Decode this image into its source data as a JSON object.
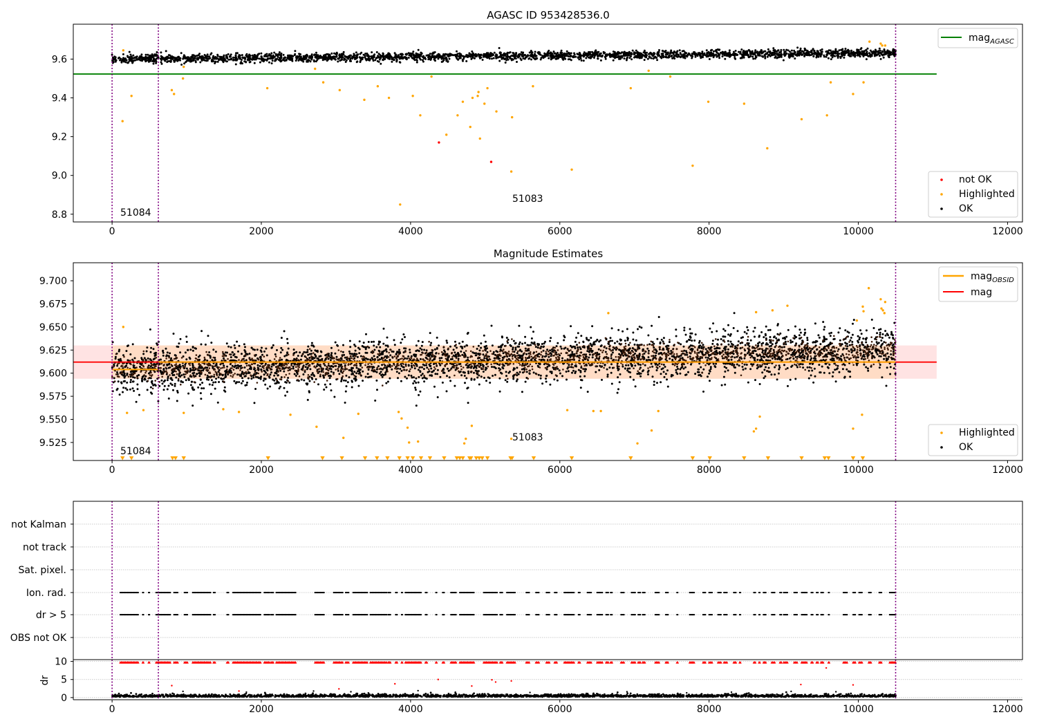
{
  "chart_data": [
    {
      "id": "top",
      "type": "scatter",
      "title": "AGASC ID 953428536.0",
      "xlim": [
        -520,
        12200
      ],
      "ylim": [
        8.76,
        9.78
      ],
      "xticks": [
        0,
        2000,
        4000,
        6000,
        8000,
        10000,
        12000
      ],
      "yticks": [
        8.8,
        9.0,
        9.2,
        9.4,
        9.6
      ],
      "vlines": [
        0,
        620,
        10500
      ],
      "hline": {
        "name": "mag",
        "subscript": "AGASC",
        "y": 9.523,
        "x_from": -520,
        "x_to": 11050,
        "color": "#008000"
      },
      "series": [
        {
          "name": "not OK",
          "color": "#ff0000"
        },
        {
          "name": "Highlighted",
          "color": "#ffa500"
        },
        {
          "name": "OK",
          "color": "#000000"
        }
      ],
      "band": {
        "x_from": 0,
        "x_to": 10500,
        "center_start": 9.6,
        "center_end": 9.632,
        "half_width": 0.022,
        "count": 2600
      },
      "highlighted_points": [
        [
          140,
          9.28
        ],
        [
          260,
          9.41
        ],
        [
          150,
          9.645
        ],
        [
          830,
          9.42
        ],
        [
          800,
          9.44
        ],
        [
          950,
          9.5
        ],
        [
          960,
          9.56
        ],
        [
          2080,
          9.45
        ],
        [
          2720,
          9.55
        ],
        [
          2830,
          9.48
        ],
        [
          3050,
          9.44
        ],
        [
          3380,
          9.39
        ],
        [
          3560,
          9.46
        ],
        [
          3710,
          9.4
        ],
        [
          3860,
          8.85
        ],
        [
          4030,
          9.41
        ],
        [
          4130,
          9.31
        ],
        [
          4280,
          9.51
        ],
        [
          4480,
          9.21
        ],
        [
          4630,
          9.31
        ],
        [
          4700,
          9.38
        ],
        [
          4800,
          9.25
        ],
        [
          4830,
          9.4
        ],
        [
          4900,
          9.41
        ],
        [
          4910,
          9.43
        ],
        [
          4930,
          9.19
        ],
        [
          4990,
          9.37
        ],
        [
          5030,
          9.45
        ],
        [
          5150,
          9.33
        ],
        [
          5350,
          9.02
        ],
        [
          5360,
          9.3
        ],
        [
          5640,
          9.46
        ],
        [
          6160,
          9.03
        ],
        [
          6950,
          9.45
        ],
        [
          7190,
          9.54
        ],
        [
          7480,
          9.51
        ],
        [
          7780,
          9.05
        ],
        [
          7990,
          9.38
        ],
        [
          8470,
          9.37
        ],
        [
          8780,
          9.14
        ],
        [
          9240,
          9.29
        ],
        [
          9580,
          9.31
        ],
        [
          9630,
          9.48
        ],
        [
          9930,
          9.42
        ],
        [
          10070,
          9.48
        ],
        [
          10150,
          9.69
        ],
        [
          10300,
          9.68
        ],
        [
          10320,
          9.67
        ],
        [
          10360,
          9.67
        ]
      ],
      "notok_points": [
        [
          4380,
          9.17
        ],
        [
          5080,
          9.07
        ]
      ],
      "annotations": [
        {
          "text": "51084",
          "x": 110,
          "y": 8.81
        },
        {
          "text": "51083",
          "x": 5350,
          "y": 8.87
        }
      ]
    },
    {
      "id": "mid",
      "type": "scatter",
      "title": "Magnitude Estimates",
      "xlim": [
        -520,
        12200
      ],
      "ylim": [
        9.5055,
        9.7195
      ],
      "xticks": [
        0,
        2000,
        4000,
        6000,
        8000,
        10000,
        12000
      ],
      "yticks": [
        9.525,
        9.55,
        9.575,
        9.6,
        9.625,
        9.65,
        9.675,
        9.7
      ],
      "vlines": [
        0,
        620,
        10500
      ],
      "mag_line": {
        "name": "mag",
        "y": 9.612,
        "x_from": -520,
        "x_to": 11050,
        "color": "#ff0000"
      },
      "mag_obsid": {
        "name": "mag",
        "subscript": "OBSID",
        "segments": [
          [
            0,
            620,
            9.604
          ],
          [
            620,
            10500,
            9.612
          ]
        ],
        "color": "#ffa500"
      },
      "shaded_band": {
        "from": 9.594,
        "to": 9.63,
        "x_from": -520,
        "x_to": 11050
      },
      "series": [
        {
          "name": "Highlighted",
          "color": "#ffa500"
        },
        {
          "name": "OK",
          "color": "#000000"
        }
      ],
      "band": {
        "x_from": 0,
        "x_to": 10500,
        "center_start": 9.604,
        "center_end": 9.625,
        "half_width": 0.026,
        "count": 3200
      },
      "highlighted_points": [
        [
          150,
          9.65
        ],
        [
          200,
          9.557
        ],
        [
          420,
          9.56
        ],
        [
          960,
          9.557
        ],
        [
          1490,
          9.561
        ],
        [
          1700,
          9.558
        ],
        [
          2390,
          9.555
        ],
        [
          2740,
          9.542
        ],
        [
          3100,
          9.53
        ],
        [
          3300,
          9.556
        ],
        [
          3840,
          9.558
        ],
        [
          3880,
          9.551
        ],
        [
          3960,
          9.541
        ],
        [
          3980,
          9.525
        ],
        [
          4100,
          9.526
        ],
        [
          4820,
          9.543
        ],
        [
          4740,
          9.529
        ],
        [
          4720,
          9.524
        ],
        [
          5350,
          9.529
        ],
        [
          6100,
          9.56
        ],
        [
          6450,
          9.559
        ],
        [
          6550,
          9.559
        ],
        [
          6650,
          9.665
        ],
        [
          7040,
          9.524
        ],
        [
          7230,
          9.538
        ],
        [
          7320,
          9.559
        ],
        [
          8630,
          9.54
        ],
        [
          8680,
          9.553
        ],
        [
          8600,
          9.537
        ],
        [
          8630,
          9.666
        ],
        [
          8850,
          9.668
        ],
        [
          9050,
          9.673
        ],
        [
          9930,
          9.54
        ],
        [
          10050,
          9.555
        ],
        [
          9980,
          9.657
        ],
        [
          10060,
          9.672
        ],
        [
          10070,
          9.667
        ],
        [
          10140,
          9.692
        ],
        [
          10300,
          9.68
        ],
        [
          10310,
          9.67
        ],
        [
          10330,
          9.668
        ],
        [
          10350,
          9.665
        ],
        [
          10360,
          9.677
        ]
      ],
      "triangles_x": [
        140,
        260,
        810,
        850,
        960,
        2090,
        2820,
        3080,
        3390,
        3550,
        3690,
        3850,
        3960,
        4030,
        4140,
        4260,
        4450,
        4620,
        4660,
        4700,
        4790,
        4810,
        4880,
        4920,
        4960,
        5030,
        5340,
        5360,
        5650,
        6160,
        6950,
        7780,
        8010,
        8470,
        8790,
        9240,
        9550,
        9600,
        9930,
        10060
      ],
      "annotations": [
        {
          "text": "51084",
          "x": 110,
          "y": 9.5115
        },
        {
          "text": "51083",
          "x": 5350,
          "y": 9.5285
        }
      ]
    },
    {
      "id": "flags",
      "type": "scatter",
      "xlim": [
        -520,
        12200
      ],
      "categories": [
        "not Kalman",
        "not track",
        "Sat. pixel.",
        "Ion. rad.",
        "dr > 5",
        "OBS not OK"
      ],
      "flag_rows": [
        "Ion. rad.",
        "dr > 5"
      ],
      "flag_clusters": [
        [
          110,
          350
        ],
        [
          410,
          420
        ],
        [
          490,
          500
        ],
        [
          590,
          780
        ],
        [
          830,
          880
        ],
        [
          970,
          1010
        ],
        [
          1080,
          1320
        ],
        [
          1360,
          1380
        ],
        [
          1540,
          1560
        ],
        [
          1620,
          1990
        ],
        [
          2040,
          2110
        ],
        [
          2130,
          2160
        ],
        [
          2200,
          2460
        ],
        [
          2720,
          2840
        ],
        [
          2970,
          3090
        ],
        [
          3130,
          3170
        ],
        [
          3230,
          3420
        ],
        [
          3460,
          3680
        ],
        [
          3700,
          3730
        ],
        [
          3800,
          3820
        ],
        [
          3880,
          3890
        ],
        [
          3930,
          4040
        ],
        [
          4050,
          4140
        ],
        [
          4200,
          4220
        ],
        [
          4340,
          4350
        ],
        [
          4430,
          4450
        ],
        [
          4540,
          4610
        ],
        [
          4660,
          4850
        ],
        [
          4980,
          5160
        ],
        [
          5200,
          5230
        ],
        [
          5290,
          5400
        ],
        [
          5550,
          5590
        ],
        [
          5680,
          5720
        ],
        [
          5820,
          5860
        ],
        [
          5930,
          5960
        ],
        [
          6060,
          6190
        ],
        [
          6250,
          6270
        ],
        [
          6370,
          6420
        ],
        [
          6500,
          6570
        ],
        [
          6620,
          6650
        ],
        [
          6680,
          6700
        ],
        [
          6820,
          6860
        ],
        [
          6960,
          7010
        ],
        [
          7050,
          7080
        ],
        [
          7110,
          7140
        ],
        [
          7280,
          7330
        ],
        [
          7420,
          7450
        ],
        [
          7570,
          7580
        ],
        [
          7740,
          7800
        ],
        [
          7920,
          7950
        ],
        [
          8000,
          8040
        ],
        [
          8120,
          8160
        ],
        [
          8200,
          8240
        ],
        [
          8330,
          8360
        ],
        [
          8410,
          8420
        ],
        [
          8600,
          8620
        ],
        [
          8670,
          8680
        ],
        [
          8730,
          8760
        ],
        [
          8840,
          8880
        ],
        [
          8950,
          8970
        ],
        [
          9000,
          9050
        ],
        [
          9140,
          9180
        ],
        [
          9240,
          9310
        ],
        [
          9370,
          9390
        ],
        [
          9440,
          9460
        ],
        [
          9500,
          9530
        ],
        [
          9600,
          9610
        ],
        [
          9800,
          9850
        ],
        [
          9930,
          9960
        ],
        [
          10010,
          10050
        ],
        [
          10140,
          10170
        ],
        [
          10280,
          10310
        ],
        [
          10420,
          10500
        ]
      ]
    },
    {
      "id": "dr",
      "type": "scatter",
      "xlim": [
        -520,
        12200
      ],
      "ylim": [
        -0.6,
        10.5
      ],
      "ylabel": "dr",
      "xticks": [
        0,
        2000,
        4000,
        6000,
        8000,
        10000,
        12000
      ],
      "yticks": [
        0,
        5,
        10
      ],
      "red_points": [
        [
          800,
          3.3
        ],
        [
          1700,
          1.8
        ],
        [
          3040,
          2.4
        ],
        [
          3790,
          3.8
        ],
        [
          4370,
          5.0
        ],
        [
          4820,
          3.2
        ],
        [
          5090,
          4.9
        ],
        [
          5140,
          4.3
        ],
        [
          5350,
          4.6
        ],
        [
          9230,
          3.6
        ],
        [
          9570,
          8.2
        ],
        [
          9930,
          3.5
        ]
      ],
      "black_outliers": [
        [
          950,
          1.7
        ],
        [
          1800,
          1.5
        ],
        [
          2700,
          1.8
        ],
        [
          3200,
          1.6
        ],
        [
          4100,
          1.9
        ],
        [
          4600,
          1.5
        ],
        [
          5600,
          1.4
        ],
        [
          6900,
          1.6
        ],
        [
          7700,
          1.3
        ],
        [
          8300,
          1.5
        ],
        [
          9100,
          1.7
        ],
        [
          9700,
          1.6
        ]
      ]
    }
  ]
}
